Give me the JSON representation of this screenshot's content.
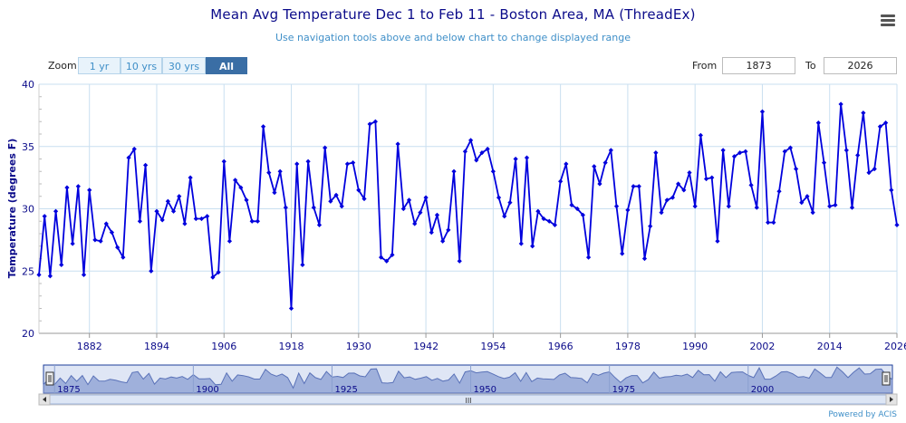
{
  "header": {
    "title": "Mean Avg Temperature Dec 1 to Feb 11 - Boston Area, MA (ThreadEx)",
    "subtitle": "Use navigation tools above and below chart to change displayed range"
  },
  "menu_icon": "hamburger-menu-icon",
  "zoom": {
    "label": "Zoom",
    "buttons": [
      "1 yr",
      "10 yrs",
      "30 yrs",
      "All"
    ],
    "active": "All"
  },
  "range": {
    "from_label": "From",
    "from_value": "1873",
    "to_label": "To",
    "to_value": "2026"
  },
  "credit": "Powered by ACIS",
  "navigator": {
    "ticks": [
      "1875",
      "1900",
      "1925",
      "1950",
      "1975",
      "2000"
    ],
    "scroll_grip": "III"
  },
  "colors": {
    "line": "#0000dd",
    "grid": "#c9dff0",
    "text": "#0b0b8a",
    "navigator_fill": "#9fb0db",
    "accent": "#3a6ea5"
  },
  "chart_data": {
    "type": "line",
    "title": "Mean Avg Temperature Dec 1 to Feb 11 - Boston Area, MA (ThreadEx)",
    "ylabel": "Temperature (degrees F)",
    "xlabel": "",
    "ylim": [
      20,
      40
    ],
    "xlim": [
      1873,
      2026
    ],
    "yticks": [
      20,
      25,
      30,
      35,
      40
    ],
    "xticks": [
      1882,
      1894,
      1906,
      1918,
      1930,
      1942,
      1954,
      1966,
      1978,
      1990,
      2002,
      2014,
      2026
    ],
    "grid": true,
    "legend": "none",
    "series": [
      {
        "name": "",
        "x": [
          1873,
          1874,
          1875,
          1876,
          1877,
          1878,
          1879,
          1880,
          1881,
          1882,
          1883,
          1884,
          1885,
          1886,
          1887,
          1888,
          1889,
          1890,
          1891,
          1892,
          1893,
          1894,
          1895,
          1896,
          1897,
          1898,
          1899,
          1900,
          1901,
          1902,
          1903,
          1904,
          1905,
          1906,
          1907,
          1908,
          1909,
          1910,
          1911,
          1912,
          1913,
          1914,
          1915,
          1916,
          1917,
          1918,
          1919,
          1920,
          1921,
          1922,
          1923,
          1924,
          1925,
          1926,
          1927,
          1928,
          1929,
          1930,
          1931,
          1932,
          1933,
          1934,
          1935,
          1936,
          1937,
          1938,
          1939,
          1940,
          1941,
          1942,
          1943,
          1944,
          1945,
          1946,
          1947,
          1948,
          1949,
          1950,
          1951,
          1952,
          1953,
          1954,
          1955,
          1956,
          1957,
          1958,
          1959,
          1960,
          1961,
          1962,
          1963,
          1964,
          1965,
          1966,
          1967,
          1968,
          1969,
          1970,
          1971,
          1972,
          1973,
          1974,
          1975,
          1976,
          1977,
          1978,
          1979,
          1980,
          1981,
          1982,
          1983,
          1984,
          1985,
          1986,
          1987,
          1988,
          1989,
          1990,
          1991,
          1992,
          1993,
          1994,
          1995,
          1996,
          1997,
          1998,
          1999,
          2000,
          2001,
          2002,
          2003,
          2004,
          2005,
          2006,
          2007,
          2008,
          2009,
          2010,
          2011,
          2012,
          2013,
          2014,
          2015,
          2016,
          2017,
          2018,
          2019,
          2020,
          2021,
          2022,
          2023,
          2024,
          2025,
          2026
        ],
        "values": [
          24.7,
          29.4,
          24.6,
          29.8,
          25.5,
          31.7,
          27.2,
          31.8,
          24.7,
          31.5,
          27.5,
          27.4,
          28.8,
          28.1,
          26.9,
          26.1,
          34.1,
          34.8,
          29.0,
          33.5,
          25.0,
          29.8,
          29.1,
          30.6,
          29.8,
          31.0,
          28.8,
          32.5,
          29.2,
          29.2,
          29.4,
          24.5,
          24.9,
          33.8,
          27.4,
          32.3,
          31.7,
          30.7,
          29.0,
          29.0,
          36.6,
          32.9,
          31.3,
          33.0,
          30.1,
          22.0,
          33.6,
          25.5,
          33.8,
          30.1,
          28.7,
          34.9,
          30.6,
          31.1,
          30.2,
          33.6,
          33.7,
          31.5,
          30.8,
          36.8,
          37.0,
          26.1,
          25.8,
          26.3,
          35.2,
          30.0,
          30.7,
          28.8,
          29.7,
          30.9,
          28.1,
          29.5,
          27.4,
          28.3,
          33.0,
          25.8,
          34.6,
          35.5,
          33.9,
          34.5,
          34.8,
          33.0,
          30.9,
          29.4,
          30.5,
          34.0,
          27.2,
          34.1,
          27.0,
          29.8,
          29.2,
          29.0,
          28.7,
          32.2,
          33.6,
          30.3,
          30.0,
          29.5,
          26.1,
          33.4,
          32.0,
          33.7,
          34.7,
          30.2,
          26.4,
          29.9,
          31.8,
          31.8,
          26.0,
          28.6,
          34.5,
          29.7,
          30.7,
          30.9,
          32.0,
          31.5,
          32.9,
          30.2,
          35.9,
          32.4,
          32.5,
          27.4,
          34.7,
          30.2,
          34.2,
          34.5,
          34.6,
          31.9,
          30.1,
          37.8,
          28.9,
          28.9,
          31.4,
          34.6,
          34.9,
          33.2,
          30.5,
          31.0,
          29.7,
          36.9,
          33.7,
          30.2,
          30.3,
          38.4,
          34.7,
          30.1,
          34.3,
          37.7,
          32.9,
          33.2,
          36.6,
          36.9,
          31.5,
          28.7
        ]
      }
    ]
  }
}
